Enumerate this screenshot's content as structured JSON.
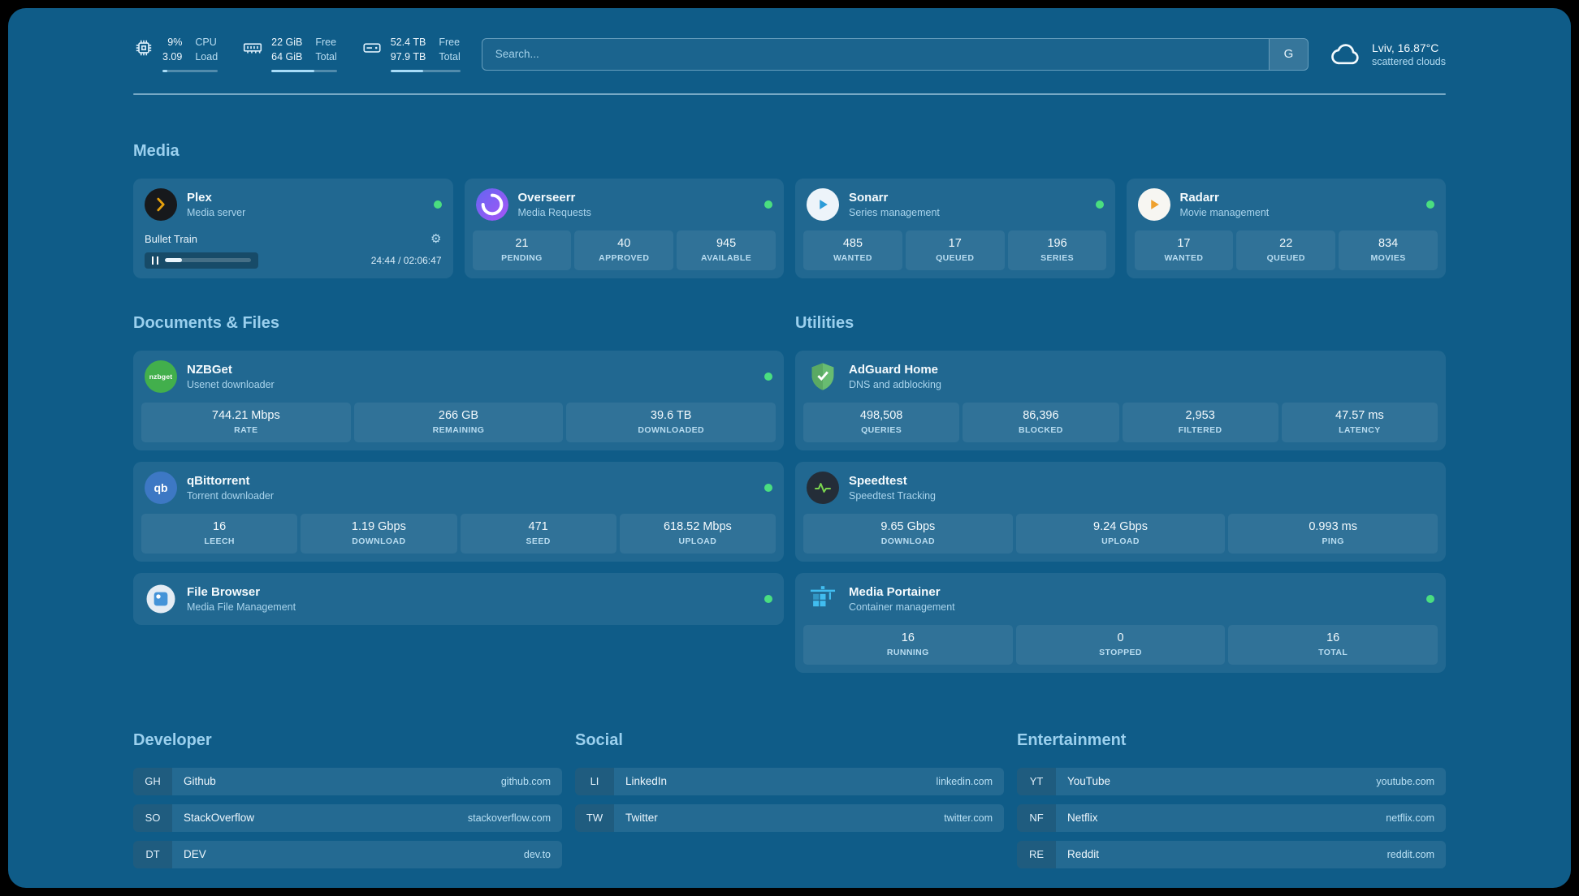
{
  "colors": {
    "background": "#0f5c88",
    "accent_text": "#9bd0ee",
    "status_online": "#4ade80",
    "plex_brand": "#e5a00d",
    "adguard_brand": "#68bc71",
    "speedtest_wave": "#7bd64f",
    "portainer_brand": "#41bdf0"
  },
  "topbar": {
    "resources": [
      {
        "id": "cpu",
        "primary": "9%",
        "secondary": "3.09",
        "label_primary": "CPU",
        "label_secondary": "Load",
        "progress": 9
      },
      {
        "id": "memory",
        "primary": "22 GiB",
        "secondary": "64 GiB",
        "label_primary": "Free",
        "label_secondary": "Total",
        "progress": 66
      },
      {
        "id": "disk",
        "primary": "52.4 TB",
        "secondary": "97.9 TB",
        "label_primary": "Free",
        "label_secondary": "Total",
        "progress": 47
      }
    ],
    "search": {
      "placeholder": "Search...",
      "provider_button": "G"
    },
    "weather": {
      "location": "Lviv, 16.87°C",
      "condition": "scattered clouds"
    }
  },
  "media": {
    "title": "Media",
    "plex": {
      "name": "Plex",
      "subtitle": "Media server",
      "now_playing": "Bullet Train",
      "time": "24:44 / 02:06:47",
      "progress": 20
    },
    "overseerr": {
      "name": "Overseerr",
      "subtitle": "Media Requests",
      "stats": [
        {
          "value": "21",
          "label": "PENDING"
        },
        {
          "value": "40",
          "label": "APPROVED"
        },
        {
          "value": "945",
          "label": "AVAILABLE"
        }
      ]
    },
    "sonarr": {
      "name": "Sonarr",
      "subtitle": "Series management",
      "stats": [
        {
          "value": "485",
          "label": "WANTED"
        },
        {
          "value": "17",
          "label": "QUEUED"
        },
        {
          "value": "196",
          "label": "SERIES"
        }
      ]
    },
    "radarr": {
      "name": "Radarr",
      "subtitle": "Movie management",
      "stats": [
        {
          "value": "17",
          "label": "WANTED"
        },
        {
          "value": "22",
          "label": "QUEUED"
        },
        {
          "value": "834",
          "label": "MOVIES"
        }
      ]
    }
  },
  "documents": {
    "title": "Documents & Files",
    "nzbget": {
      "name": "NZBGet",
      "subtitle": "Usenet downloader",
      "icon_text": "nzbget",
      "stats": [
        {
          "value": "744.21 Mbps",
          "label": "RATE"
        },
        {
          "value": "266 GB",
          "label": "REMAINING"
        },
        {
          "value": "39.6 TB",
          "label": "DOWNLOADED"
        }
      ]
    },
    "qbittorrent": {
      "name": "qBittorrent",
      "subtitle": "Torrent downloader",
      "icon_text": "qb",
      "stats": [
        {
          "value": "16",
          "label": "LEECH"
        },
        {
          "value": "1.19 Gbps",
          "label": "DOWNLOAD"
        },
        {
          "value": "471",
          "label": "SEED"
        },
        {
          "value": "618.52 Mbps",
          "label": "UPLOAD"
        }
      ]
    },
    "filebrowser": {
      "name": "File Browser",
      "subtitle": "Media File Management"
    }
  },
  "utilities": {
    "title": "Utilities",
    "adguard": {
      "name": "AdGuard Home",
      "subtitle": "DNS and adblocking",
      "stats": [
        {
          "value": "498,508",
          "label": "QUERIES"
        },
        {
          "value": "86,396",
          "label": "BLOCKED"
        },
        {
          "value": "2,953",
          "label": "FILTERED"
        },
        {
          "value": "47.57 ms",
          "label": "LATENCY"
        }
      ]
    },
    "speedtest": {
      "name": "Speedtest",
      "subtitle": "Speedtest Tracking",
      "stats": [
        {
          "value": "9.65 Gbps",
          "label": "DOWNLOAD"
        },
        {
          "value": "9.24 Gbps",
          "label": "UPLOAD"
        },
        {
          "value": "0.993 ms",
          "label": "PING"
        }
      ]
    },
    "portainer": {
      "name": "Media Portainer",
      "subtitle": "Container management",
      "stats": [
        {
          "value": "16",
          "label": "RUNNING"
        },
        {
          "value": "0",
          "label": "STOPPED"
        },
        {
          "value": "16",
          "label": "TOTAL"
        }
      ]
    }
  },
  "bookmarks": [
    {
      "title": "Developer",
      "items": [
        {
          "abbr": "GH",
          "name": "Github",
          "url": "github.com"
        },
        {
          "abbr": "SO",
          "name": "StackOverflow",
          "url": "stackoverflow.com"
        },
        {
          "abbr": "DT",
          "name": "DEV",
          "url": "dev.to"
        }
      ]
    },
    {
      "title": "Social",
      "items": [
        {
          "abbr": "LI",
          "name": "LinkedIn",
          "url": "linkedin.com"
        },
        {
          "abbr": "TW",
          "name": "Twitter",
          "url": "twitter.com"
        }
      ]
    },
    {
      "title": "Entertainment",
      "items": [
        {
          "abbr": "YT",
          "name": "YouTube",
          "url": "youtube.com"
        },
        {
          "abbr": "NF",
          "name": "Netflix",
          "url": "netflix.com"
        },
        {
          "abbr": "RE",
          "name": "Reddit",
          "url": "reddit.com"
        }
      ]
    }
  ]
}
